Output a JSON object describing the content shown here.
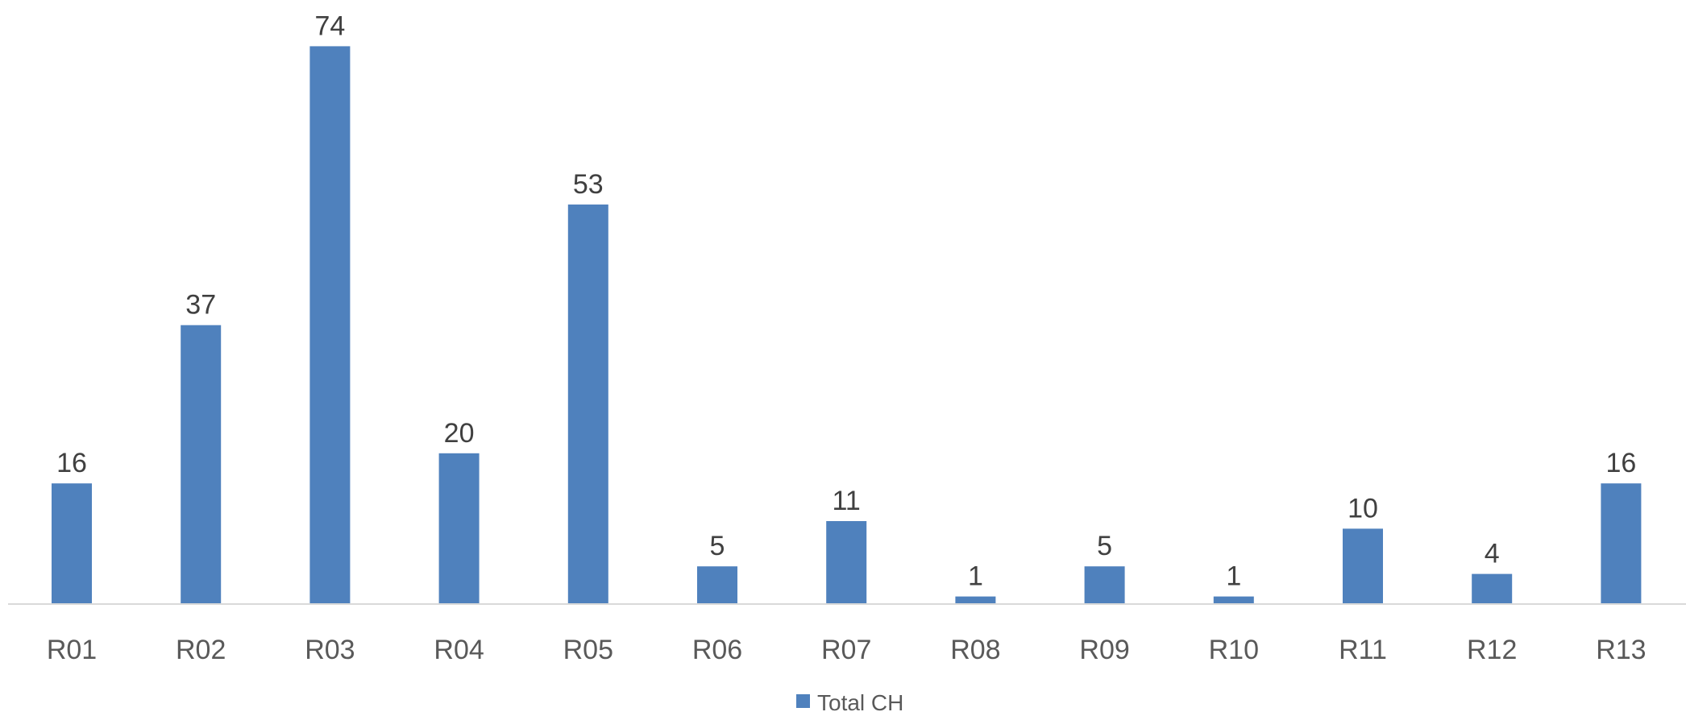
{
  "chart_data": {
    "type": "bar",
    "categories": [
      "R01",
      "R02",
      "R03",
      "R04",
      "R05",
      "R06",
      "R07",
      "R08",
      "R09",
      "R10",
      "R11",
      "R12",
      "R13"
    ],
    "series": [
      {
        "name": "Total CH",
        "values": [
          16,
          37,
          74,
          20,
          53,
          5,
          11,
          1,
          5,
          1,
          10,
          4,
          16
        ],
        "color": "#4f81bd"
      }
    ],
    "data_labels": true,
    "grid": false,
    "legend": "bottom-center"
  }
}
